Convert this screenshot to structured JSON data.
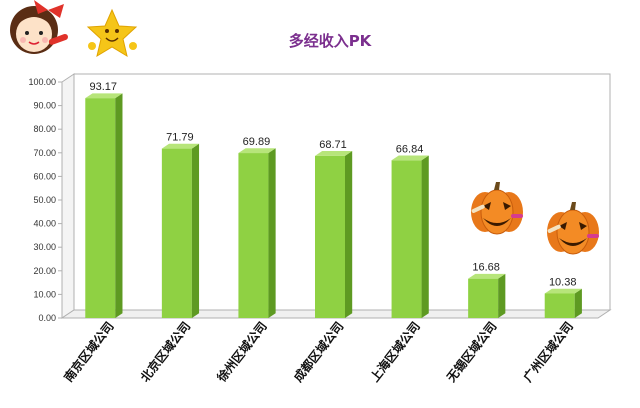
{
  "chart_data": {
    "type": "bar",
    "title": "多经收入PK",
    "categories": [
      "南京区域公司",
      "北京区域公司",
      "徐州区域公司",
      "成都区域公司",
      "上海区域公司",
      "无锡区域公司",
      "广州区域公司"
    ],
    "values": [
      93.17,
      71.79,
      69.89,
      68.71,
      66.84,
      16.68,
      10.38
    ],
    "value_labels": [
      "93.17",
      "71.79",
      "69.89",
      "68.71",
      "66.84",
      "16.68",
      "10.38"
    ],
    "y_ticks": [
      "0.00",
      "10.00",
      "20.00",
      "30.00",
      "40.00",
      "50.00",
      "60.00",
      "70.00",
      "80.00",
      "90.00",
      "100.00"
    ],
    "ylim": [
      0,
      100
    ],
    "xlabel": "",
    "ylabel": "",
    "grid": false,
    "legend": "none",
    "style": "3d-column"
  },
  "colors": {
    "bar_front": "#8fd143",
    "bar_side": "#5e9a22",
    "bar_top": "#b7e57a",
    "wall": "#ffffff",
    "axis": "#b0b0b0",
    "title": "#7b2f8e"
  },
  "decorations": [
    "cartoon-girl-icon",
    "smiling-star-icon",
    "pumpkin-icon",
    "pumpkin-icon"
  ]
}
